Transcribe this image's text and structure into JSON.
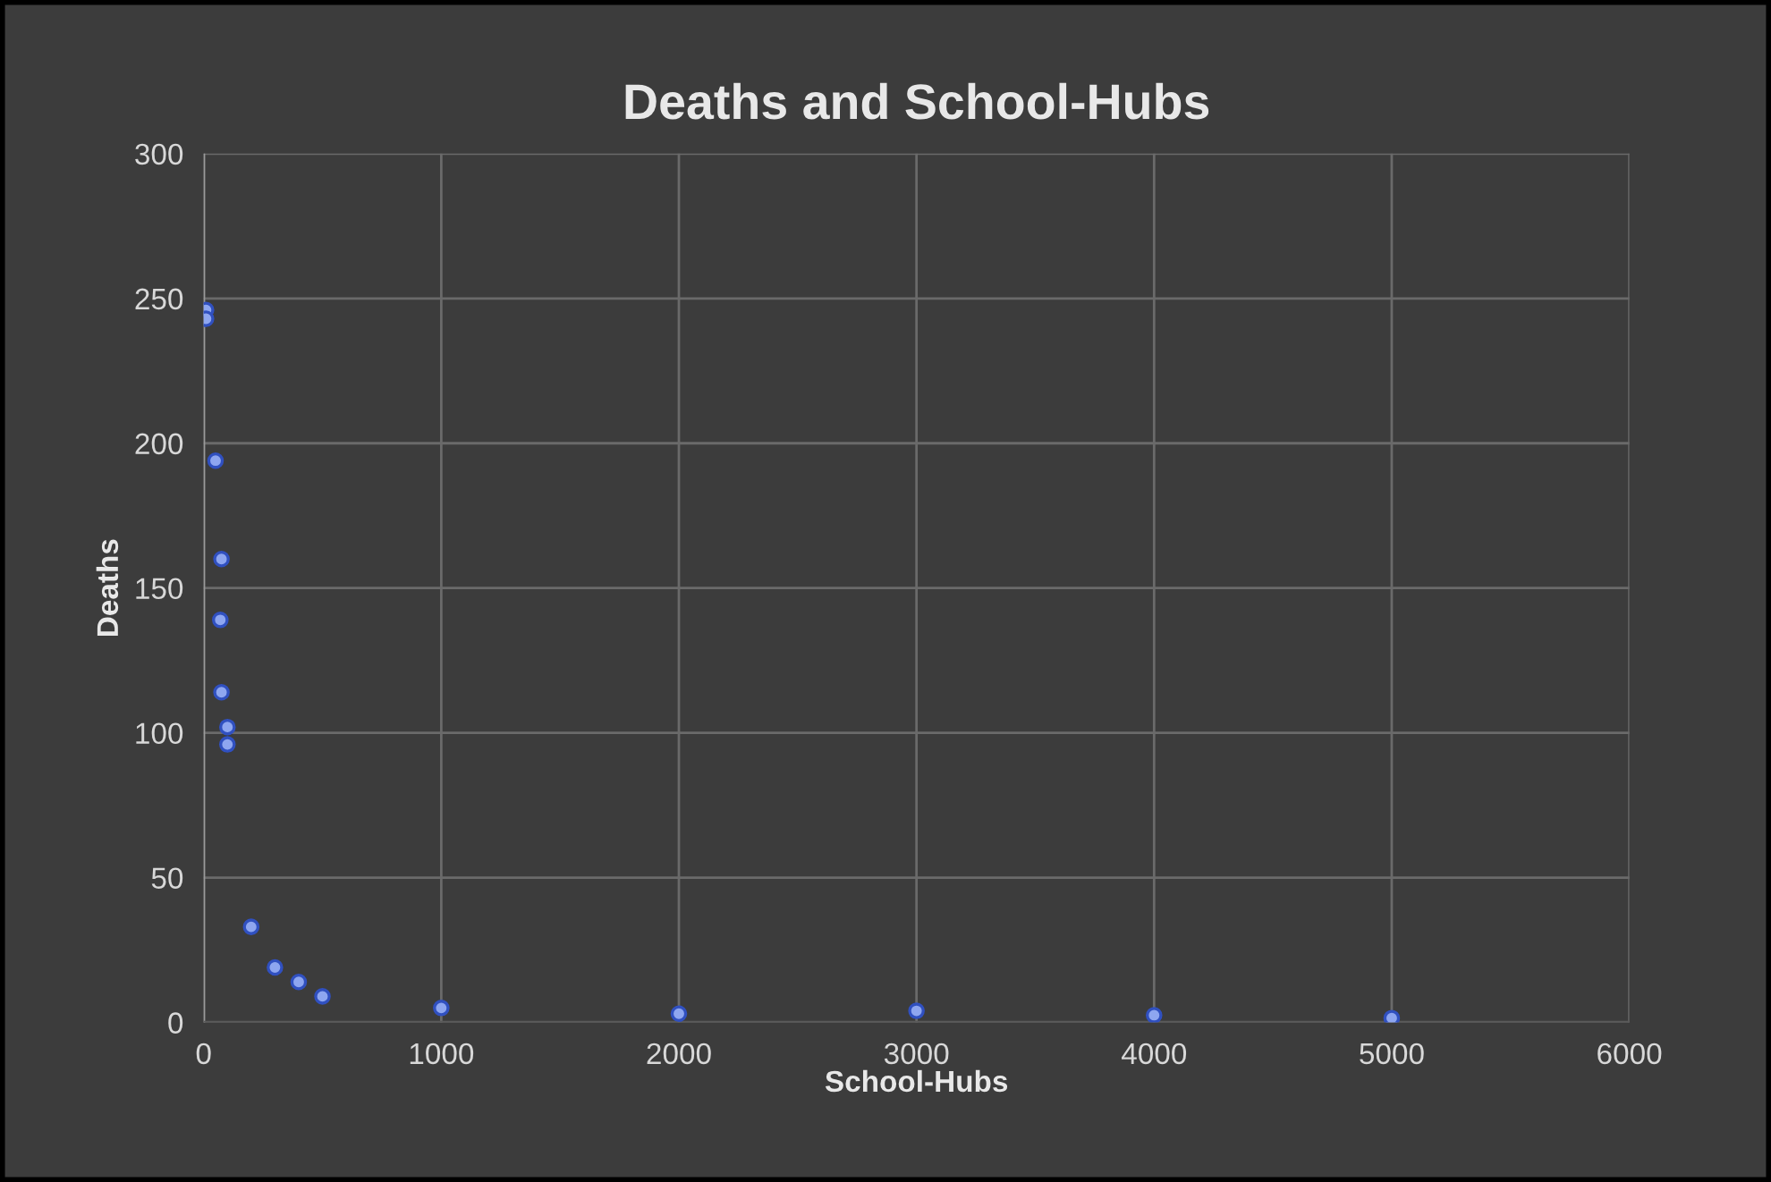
{
  "chart_data": {
    "type": "scatter",
    "title": "Deaths and School-Hubs",
    "xlabel": "School-Hubs",
    "ylabel": "Deaths",
    "x": [
      10,
      10,
      50,
      75,
      70,
      75,
      100,
      100,
      200,
      300,
      400,
      500,
      1000,
      2000,
      3000,
      4000,
      5000
    ],
    "series": [
      {
        "color": "#8ea6f0",
        "values": [
          246,
          243,
          194,
          160,
          139,
          114,
          102,
          96,
          33,
          19,
          14,
          9,
          5,
          3,
          4,
          2.5,
          1.5
        ]
      }
    ],
    "xlim": [
      0,
      6000
    ],
    "xticks": [
      0,
      1000,
      2000,
      3000,
      4000,
      5000,
      6000
    ],
    "ylim": [
      0,
      300
    ],
    "yticks": [
      0,
      50,
      100,
      150,
      200,
      250,
      300
    ],
    "grid": true,
    "marker": "circle",
    "legend": false
  }
}
